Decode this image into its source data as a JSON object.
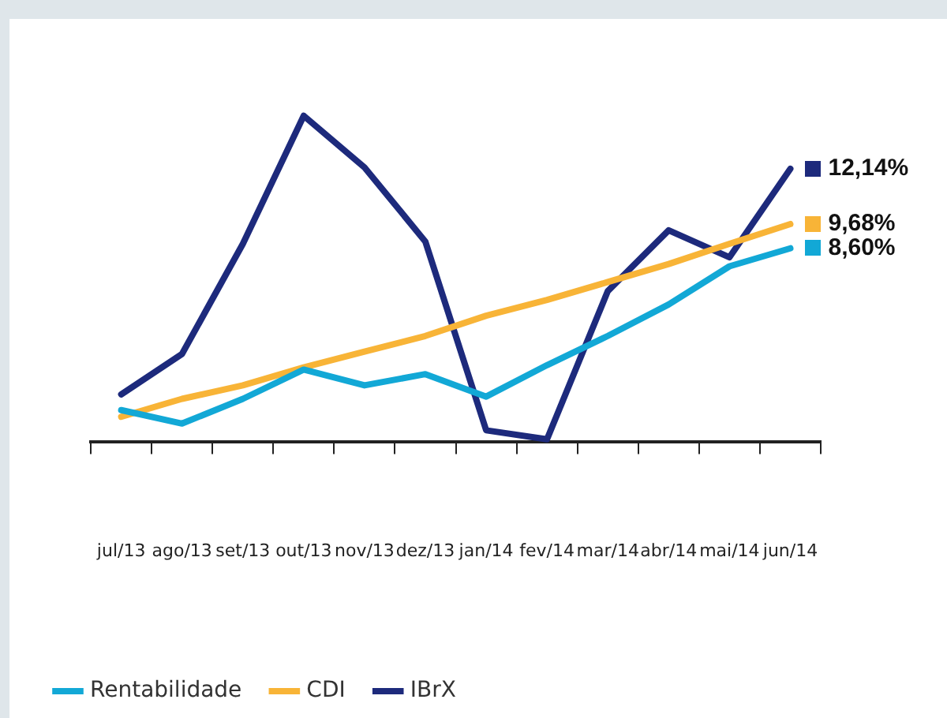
{
  "chart_data": {
    "type": "line",
    "categories": [
      "jul/13",
      "ago/13",
      "set/13",
      "out/13",
      "nov/13",
      "dez/13",
      "jan/14",
      "fev/14",
      "mar/14",
      "abr/14",
      "mai/14",
      "jun/14"
    ],
    "series": [
      {
        "name": "Rentabilidade",
        "color": "#12a8d6",
        "values": [
          1.4,
          0.8,
          1.9,
          3.2,
          2.5,
          3.0,
          2.0,
          3.4,
          4.7,
          6.1,
          7.8,
          8.6
        ],
        "value_labels": [
          null,
          null,
          null,
          null,
          null,
          null,
          null,
          null,
          null,
          null,
          null,
          "8,60%"
        ]
      },
      {
        "name": "CDI",
        "color": "#f8b437",
        "values": [
          1.1,
          1.9,
          2.5,
          3.3,
          4.0,
          4.7,
          5.6,
          6.3,
          7.1,
          7.9,
          8.8,
          9.68
        ],
        "value_labels": [
          null,
          null,
          null,
          null,
          null,
          null,
          null,
          null,
          null,
          null,
          null,
          "9,68%"
        ]
      },
      {
        "name": "IBrX",
        "color": "#1d2a7c",
        "values": [
          2.1,
          3.9,
          8.8,
          14.5,
          12.2,
          8.9,
          0.5,
          0.1,
          6.7,
          9.4,
          8.2,
          12.14
        ],
        "value_labels": [
          null,
          null,
          null,
          null,
          null,
          null,
          null,
          null,
          null,
          null,
          null,
          "12,14%"
        ]
      }
    ],
    "tick_labels": "x",
    "legend": "bottom left",
    "marker": "none",
    "line_style": "solid"
  }
}
